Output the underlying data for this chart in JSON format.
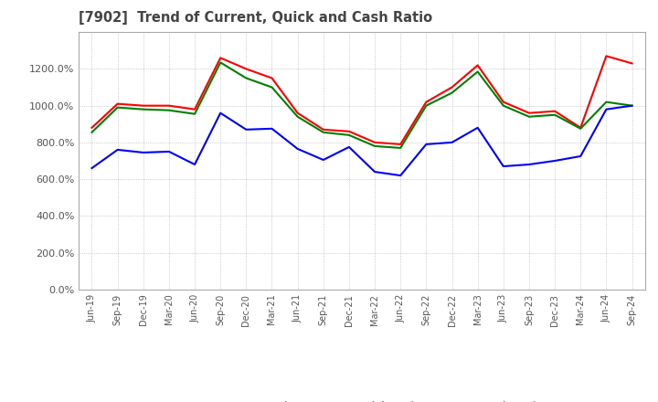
{
  "title": "[7902]  Trend of Current, Quick and Cash Ratio",
  "x_labels": [
    "Jun-19",
    "Sep-19",
    "Dec-19",
    "Mar-20",
    "Jun-20",
    "Sep-20",
    "Dec-20",
    "Mar-21",
    "Jun-21",
    "Sep-21",
    "Dec-21",
    "Mar-22",
    "Jun-22",
    "Sep-22",
    "Dec-22",
    "Mar-23",
    "Jun-23",
    "Sep-23",
    "Dec-23",
    "Mar-24",
    "Jun-24",
    "Sep-24"
  ],
  "current_ratio": [
    880,
    1010,
    1000,
    1000,
    980,
    1260,
    1200,
    1150,
    960,
    870,
    860,
    800,
    790,
    1020,
    1100,
    1220,
    1020,
    960,
    970,
    880,
    1270,
    1230
  ],
  "quick_ratio": [
    855,
    990,
    980,
    975,
    955,
    1235,
    1150,
    1100,
    940,
    855,
    840,
    780,
    770,
    1000,
    1070,
    1185,
    1000,
    940,
    950,
    875,
    1020,
    1000
  ],
  "cash_ratio": [
    660,
    760,
    745,
    750,
    680,
    960,
    870,
    875,
    765,
    705,
    775,
    640,
    620,
    790,
    800,
    880,
    670,
    680,
    700,
    725,
    980,
    1000
  ],
  "current_color": "#ff0000",
  "quick_color": "#008000",
  "cash_color": "#0000ff",
  "ylim": [
    0,
    1400
  ],
  "yticks": [
    0,
    200,
    400,
    600,
    800,
    1000,
    1200
  ],
  "background_color": "#ffffff",
  "grid_color": "#aaaaaa"
}
